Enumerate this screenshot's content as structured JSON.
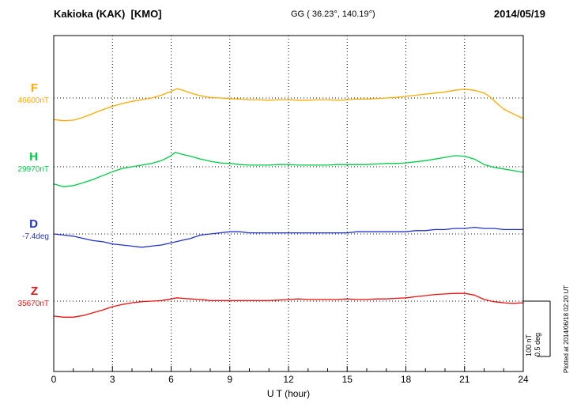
{
  "header": {
    "station": "Kakioka (KAK)  [KMO]",
    "coordinates": "GG ( 36.23°, 140.19°)",
    "date": "2014/05/19"
  },
  "axis": {
    "x_label": "U T (hour)",
    "x_ticks": [
      "0",
      "3",
      "6",
      "9",
      "12",
      "15",
      "18",
      "21",
      "24"
    ]
  },
  "scale_bar": {
    "nT_label": "100 nT",
    "deg_label": "0.5 deg"
  },
  "plotted_note": "Plotted at 2014/06/18 02:20 UT",
  "chart_data": {
    "type": "line",
    "title": "Kakioka (KAK) [KMO] geomagnetic field variations 2014/05/19",
    "xlabel": "U T (hour)",
    "xlim": [
      0,
      24
    ],
    "x_tick_hours": [
      0,
      3,
      6,
      9,
      12,
      15,
      18,
      21,
      24
    ],
    "grid": "vertical dotted lines every 3 hours; dotted horizontal baseline per component",
    "scale": {
      "bar_nT": 100,
      "bar_deg": 0.5
    },
    "series": [
      {
        "name": "F",
        "unit": "nT",
        "baseline_label": "46600nT",
        "baseline_value": 46600,
        "color": "#FFAA00",
        "points": [
          [
            0,
            -39
          ],
          [
            0.5,
            -41
          ],
          [
            1,
            -40
          ],
          [
            1.5,
            -35
          ],
          [
            2,
            -28
          ],
          [
            2.5,
            -21
          ],
          [
            3,
            -15
          ],
          [
            3.5,
            -10
          ],
          [
            4,
            -6
          ],
          [
            4.5,
            -3
          ],
          [
            5,
            0
          ],
          [
            5.5,
            5
          ],
          [
            6,
            12
          ],
          [
            6.3,
            17
          ],
          [
            6.6,
            14
          ],
          [
            7,
            9
          ],
          [
            7.5,
            4
          ],
          [
            8,
            1
          ],
          [
            8.5,
            0
          ],
          [
            9,
            -1
          ],
          [
            9.5,
            -2
          ],
          [
            10,
            -3
          ],
          [
            10.5,
            -3
          ],
          [
            11,
            -4
          ],
          [
            11.5,
            -3
          ],
          [
            12,
            -3
          ],
          [
            12.5,
            -4
          ],
          [
            13,
            -4
          ],
          [
            13.5,
            -3
          ],
          [
            14,
            -3
          ],
          [
            14.5,
            -4
          ],
          [
            15,
            -3
          ],
          [
            15.5,
            -2
          ],
          [
            16,
            -2
          ],
          [
            16.5,
            -1
          ],
          [
            17,
            0
          ],
          [
            17.5,
            1
          ],
          [
            18,
            3
          ],
          [
            18.5,
            5
          ],
          [
            19,
            7
          ],
          [
            19.5,
            9
          ],
          [
            20,
            11
          ],
          [
            20.5,
            14
          ],
          [
            21,
            16
          ],
          [
            21.5,
            14
          ],
          [
            22,
            9
          ],
          [
            22.3,
            2
          ],
          [
            22.6,
            -8
          ],
          [
            23,
            -20
          ],
          [
            23.5,
            -29
          ],
          [
            24,
            -37
          ]
        ]
      },
      {
        "name": "H",
        "unit": "nT",
        "baseline_label": "29970nT",
        "baseline_value": 29970,
        "color": "#00CC44",
        "points": [
          [
            0,
            -31
          ],
          [
            0.5,
            -36
          ],
          [
            1,
            -34
          ],
          [
            1.5,
            -29
          ],
          [
            2,
            -23
          ],
          [
            2.5,
            -16
          ],
          [
            3,
            -9
          ],
          [
            3.5,
            -3
          ],
          [
            4,
            0
          ],
          [
            4.5,
            3
          ],
          [
            5,
            6
          ],
          [
            5.5,
            11
          ],
          [
            6,
            20
          ],
          [
            6.2,
            26
          ],
          [
            6.5,
            23
          ],
          [
            7,
            19
          ],
          [
            7.5,
            14
          ],
          [
            8,
            10
          ],
          [
            8.5,
            7
          ],
          [
            9,
            6
          ],
          [
            9.5,
            4
          ],
          [
            10,
            3
          ],
          [
            10.5,
            3
          ],
          [
            11,
            3
          ],
          [
            11.5,
            4
          ],
          [
            12,
            4
          ],
          [
            12.5,
            3
          ],
          [
            13,
            3
          ],
          [
            13.5,
            3
          ],
          [
            14,
            3
          ],
          [
            14.5,
            4
          ],
          [
            15,
            4
          ],
          [
            15.5,
            4
          ],
          [
            16,
            4
          ],
          [
            16.5,
            5
          ],
          [
            17,
            6
          ],
          [
            17.5,
            6
          ],
          [
            18,
            7
          ],
          [
            18.5,
            9
          ],
          [
            19,
            11
          ],
          [
            19.5,
            14
          ],
          [
            20,
            17
          ],
          [
            20.5,
            20
          ],
          [
            21,
            19
          ],
          [
            21.5,
            14
          ],
          [
            22,
            4
          ],
          [
            22.5,
            -1
          ],
          [
            23,
            -4
          ],
          [
            23.5,
            -7
          ],
          [
            24,
            -10
          ]
        ]
      },
      {
        "name": "D",
        "unit": "deg",
        "baseline_label": "-7.4deg",
        "baseline_value": -7.4,
        "color": "#2233CC",
        "points": [
          [
            0,
            0
          ],
          [
            0.5,
            -0.01
          ],
          [
            1,
            -0.02
          ],
          [
            1.5,
            -0.04
          ],
          [
            2,
            -0.06
          ],
          [
            2.5,
            -0.07
          ],
          [
            3,
            -0.09
          ],
          [
            3.5,
            -0.1
          ],
          [
            4,
            -0.11
          ],
          [
            4.5,
            -0.12
          ],
          [
            5,
            -0.11
          ],
          [
            5.5,
            -0.1
          ],
          [
            6,
            -0.08
          ],
          [
            6.5,
            -0.06
          ],
          [
            7,
            -0.04
          ],
          [
            7.5,
            -0.01
          ],
          [
            8,
            0
          ],
          [
            8.5,
            0.01
          ],
          [
            9,
            0.02
          ],
          [
            9.5,
            0.02
          ],
          [
            10,
            0.01
          ],
          [
            10.5,
            0.01
          ],
          [
            11,
            0.01
          ],
          [
            11.5,
            0.01
          ],
          [
            12,
            0.01
          ],
          [
            12.5,
            0.01
          ],
          [
            13,
            0.01
          ],
          [
            13.5,
            0.01
          ],
          [
            14,
            0.01
          ],
          [
            14.5,
            0.01
          ],
          [
            15,
            0.01
          ],
          [
            15.5,
            0.02
          ],
          [
            16,
            0.02
          ],
          [
            16.5,
            0.02
          ],
          [
            17,
            0.02
          ],
          [
            17.5,
            0.02
          ],
          [
            18,
            0.02
          ],
          [
            18.5,
            0.03
          ],
          [
            19,
            0.03
          ],
          [
            19.5,
            0.04
          ],
          [
            20,
            0.04
          ],
          [
            20.5,
            0.05
          ],
          [
            21,
            0.05
          ],
          [
            21.5,
            0.06
          ],
          [
            22,
            0.05
          ],
          [
            22.5,
            0.05
          ],
          [
            23,
            0.04
          ],
          [
            23.5,
            0.04
          ],
          [
            24,
            0.04
          ]
        ]
      },
      {
        "name": "Z",
        "unit": "nT",
        "baseline_label": "35670nT",
        "baseline_value": 35670,
        "color": "#EE1111",
        "points": [
          [
            0,
            -27
          ],
          [
            0.5,
            -29
          ],
          [
            1,
            -29
          ],
          [
            1.5,
            -26
          ],
          [
            2,
            -21
          ],
          [
            2.5,
            -16
          ],
          [
            3,
            -10
          ],
          [
            3.5,
            -6
          ],
          [
            4,
            -3
          ],
          [
            4.5,
            -1
          ],
          [
            5,
            0
          ],
          [
            5.5,
            1
          ],
          [
            6,
            4
          ],
          [
            6.3,
            6
          ],
          [
            6.6,
            5
          ],
          [
            7,
            4
          ],
          [
            7.5,
            3
          ],
          [
            8,
            1
          ],
          [
            8.5,
            1
          ],
          [
            9,
            1
          ],
          [
            9.5,
            1
          ],
          [
            10,
            1
          ],
          [
            10.5,
            1
          ],
          [
            11,
            1
          ],
          [
            11.5,
            2
          ],
          [
            12,
            3
          ],
          [
            12.5,
            4
          ],
          [
            13,
            3
          ],
          [
            13.5,
            3
          ],
          [
            14,
            3
          ],
          [
            14.5,
            3
          ],
          [
            15,
            4
          ],
          [
            15.5,
            3
          ],
          [
            16,
            3
          ],
          [
            16.5,
            4
          ],
          [
            17,
            4
          ],
          [
            17.5,
            5
          ],
          [
            18,
            6
          ],
          [
            18.5,
            8
          ],
          [
            19,
            10
          ],
          [
            19.5,
            12
          ],
          [
            20,
            13
          ],
          [
            20.5,
            14
          ],
          [
            21,
            14
          ],
          [
            21.5,
            11
          ],
          [
            22,
            3
          ],
          [
            22.5,
            -1
          ],
          [
            23,
            -3
          ],
          [
            23.5,
            -4
          ],
          [
            24,
            -3
          ]
        ]
      }
    ]
  }
}
